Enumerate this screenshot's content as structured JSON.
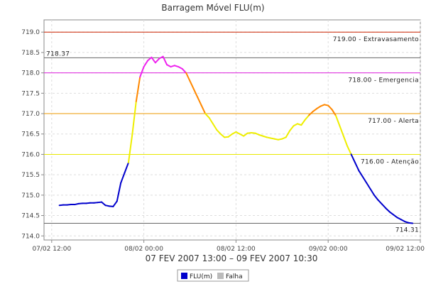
{
  "chart_data": {
    "type": "line",
    "title": "Barragem Móvel FLU(m)",
    "subtitle": "07 FEV 2007 13:00 – 09 FEV 2007 10:30",
    "x_ticks": [
      "07/02 12:00",
      "08/02 00:00",
      "08/02 12:00",
      "09/02 00:00",
      "09/02 12:00"
    ],
    "x_tick_hours": [
      0,
      12,
      24,
      36,
      48
    ],
    "xlim_hours": [
      -1,
      48
    ],
    "ylim": [
      713.9,
      719.3
    ],
    "y_ticks": [
      "714.0",
      "714.5",
      "715.0",
      "715.5",
      "716.0",
      "716.5",
      "717.0",
      "717.5",
      "718.0",
      "718.5",
      "719.0"
    ],
    "grid": true,
    "thresholds": [
      {
        "value": 719.0,
        "label": "719.00 - Extravasamento",
        "color": "#cc2200"
      },
      {
        "value": 718.0,
        "label": "718.00 - Emergencia",
        "color": "#dd22dd"
      },
      {
        "value": 717.0,
        "label": "717.00 - Alerta",
        "color": "#ee9900"
      },
      {
        "value": 716.0,
        "label": "716.00 - Atenção",
        "color": "#e8e800"
      }
    ],
    "markers": [
      {
        "value": 718.37,
        "label": "718.37"
      },
      {
        "value": 714.31,
        "label": "714.31"
      }
    ],
    "series": [
      {
        "name": "FLU(m)",
        "color": "#0000cc",
        "x_hours": [
          1.0,
          1.5,
          2.0,
          2.5,
          3.0,
          3.5,
          4.0,
          4.5,
          5.0,
          5.5,
          6.0,
          6.5,
          7.0,
          7.5,
          8.0,
          8.5,
          9.0,
          9.5,
          10.0,
          10.5,
          11.0,
          11.5,
          12.0,
          12.5,
          13.0,
          13.5,
          14.0,
          14.5,
          15.0,
          15.5,
          16.0,
          16.5,
          17.0,
          17.5,
          18.0,
          18.5,
          19.0,
          19.5,
          20.0,
          20.5,
          21.0,
          21.5,
          22.0,
          22.5,
          23.0,
          23.5,
          24.0,
          24.5,
          25.0,
          25.5,
          26.0,
          26.5,
          27.0,
          27.5,
          28.0,
          28.5,
          29.0,
          29.5,
          30.0,
          30.5,
          31.0,
          31.5,
          32.0,
          32.5,
          33.0,
          33.5,
          34.0,
          34.5,
          35.0,
          35.5,
          36.0,
          36.5,
          37.0,
          37.5,
          38.0,
          38.5,
          39.0,
          39.5,
          40.0,
          40.5,
          41.0,
          41.5,
          42.0,
          42.5,
          43.0,
          43.5,
          44.0,
          44.5,
          45.0,
          45.5,
          46.0,
          46.5,
          47.0
        ],
        "values": [
          714.75,
          714.76,
          714.76,
          714.77,
          714.77,
          714.79,
          714.8,
          714.8,
          714.81,
          714.81,
          714.82,
          714.83,
          714.75,
          714.73,
          714.72,
          714.85,
          715.3,
          715.55,
          715.8,
          716.5,
          717.3,
          717.9,
          718.15,
          718.3,
          718.38,
          718.25,
          718.35,
          718.4,
          718.2,
          718.15,
          718.18,
          718.15,
          718.1,
          718.0,
          717.8,
          717.6,
          717.4,
          717.2,
          717.0,
          716.9,
          716.75,
          716.6,
          716.5,
          716.42,
          716.43,
          716.5,
          716.55,
          716.5,
          716.45,
          716.52,
          716.53,
          716.52,
          716.48,
          716.45,
          716.42,
          716.4,
          716.38,
          716.36,
          716.38,
          716.42,
          716.58,
          716.7,
          716.75,
          716.72,
          716.85,
          716.96,
          717.05,
          717.12,
          717.18,
          717.22,
          717.2,
          717.1,
          716.95,
          716.7,
          716.45,
          716.2,
          716.0,
          715.8,
          715.6,
          715.45,
          715.3,
          715.15,
          715.0,
          714.88,
          714.78,
          714.68,
          714.59,
          714.52,
          714.45,
          714.4,
          714.35,
          714.32,
          714.31
        ]
      },
      {
        "name": "Falha",
        "color": "#bbbbbb",
        "x_hours": [],
        "values": []
      }
    ],
    "legend": "bottom-center"
  }
}
